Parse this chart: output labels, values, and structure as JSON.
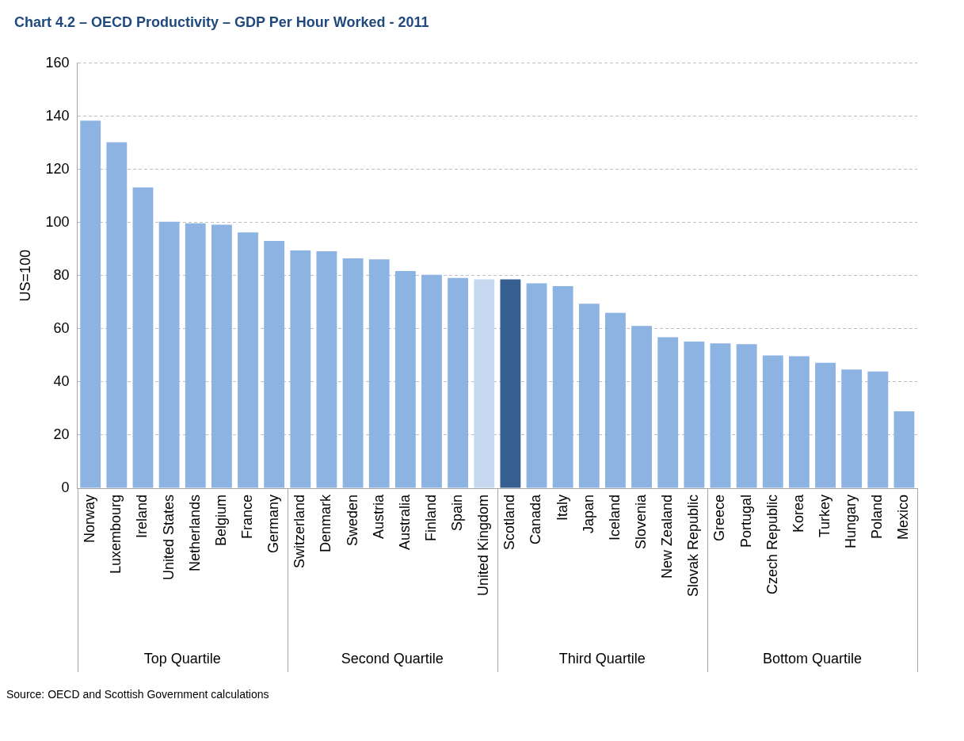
{
  "chart_data": {
    "type": "bar",
    "title": "Chart 4.2 – OECD Productivity – GDP Per Hour Worked - 2011",
    "ylabel": "US=100",
    "categories": [
      "Norway",
      "Luxembourg",
      "Ireland",
      "United States",
      "Netherlands",
      "Belgium",
      "France",
      "Germany",
      "Switzerland",
      "Denmark",
      "Sweden",
      "Austria",
      "Australia",
      "Finland",
      "Spain",
      "United Kingdom",
      "Scotland",
      "Canada",
      "Italy",
      "Japan",
      "Iceland",
      "Slovenia",
      "New Zealand",
      "Slovak Republic",
      "Greece",
      "Portugal",
      "Czech Republic",
      "Korea",
      "Turkey",
      "Hungary",
      "Poland",
      "Mexico"
    ],
    "values": [
      138.3,
      130.2,
      113.2,
      100.3,
      99.7,
      99.2,
      96.3,
      93.1,
      89.5,
      89.2,
      86.5,
      86.1,
      81.7,
      80.3,
      79.1,
      78.6,
      78.6,
      77.1,
      76.1,
      69.4,
      66.0,
      61.1,
      56.8,
      55.2,
      54.5,
      54.2,
      50.0,
      49.7,
      47.2,
      44.7,
      43.9,
      28.9
    ],
    "colors": [
      "#8db3e2",
      "#8db3e2",
      "#8db3e2",
      "#8db3e2",
      "#8db3e2",
      "#8db3e2",
      "#8db3e2",
      "#8db3e2",
      "#8db3e2",
      "#8db3e2",
      "#8db3e2",
      "#8db3e2",
      "#8db3e2",
      "#8db3e2",
      "#8db3e2",
      "#c6d9f1",
      "#376092",
      "#8db3e2",
      "#8db3e2",
      "#8db3e2",
      "#8db3e2",
      "#8db3e2",
      "#8db3e2",
      "#8db3e2",
      "#8db3e2",
      "#8db3e2",
      "#8db3e2",
      "#8db3e2",
      "#8db3e2",
      "#8db3e2",
      "#8db3e2",
      "#8db3e2"
    ],
    "ylim": [
      0,
      160
    ],
    "yticks": [
      0,
      20,
      40,
      60,
      80,
      100,
      120,
      140,
      160
    ],
    "grid": "y",
    "legend": false,
    "annotations": [
      "Top Quartile",
      "Second Quartile",
      "Third Quartile",
      "Bottom Quartile",
      "Source: OECD and Scottish Government calculations"
    ]
  }
}
